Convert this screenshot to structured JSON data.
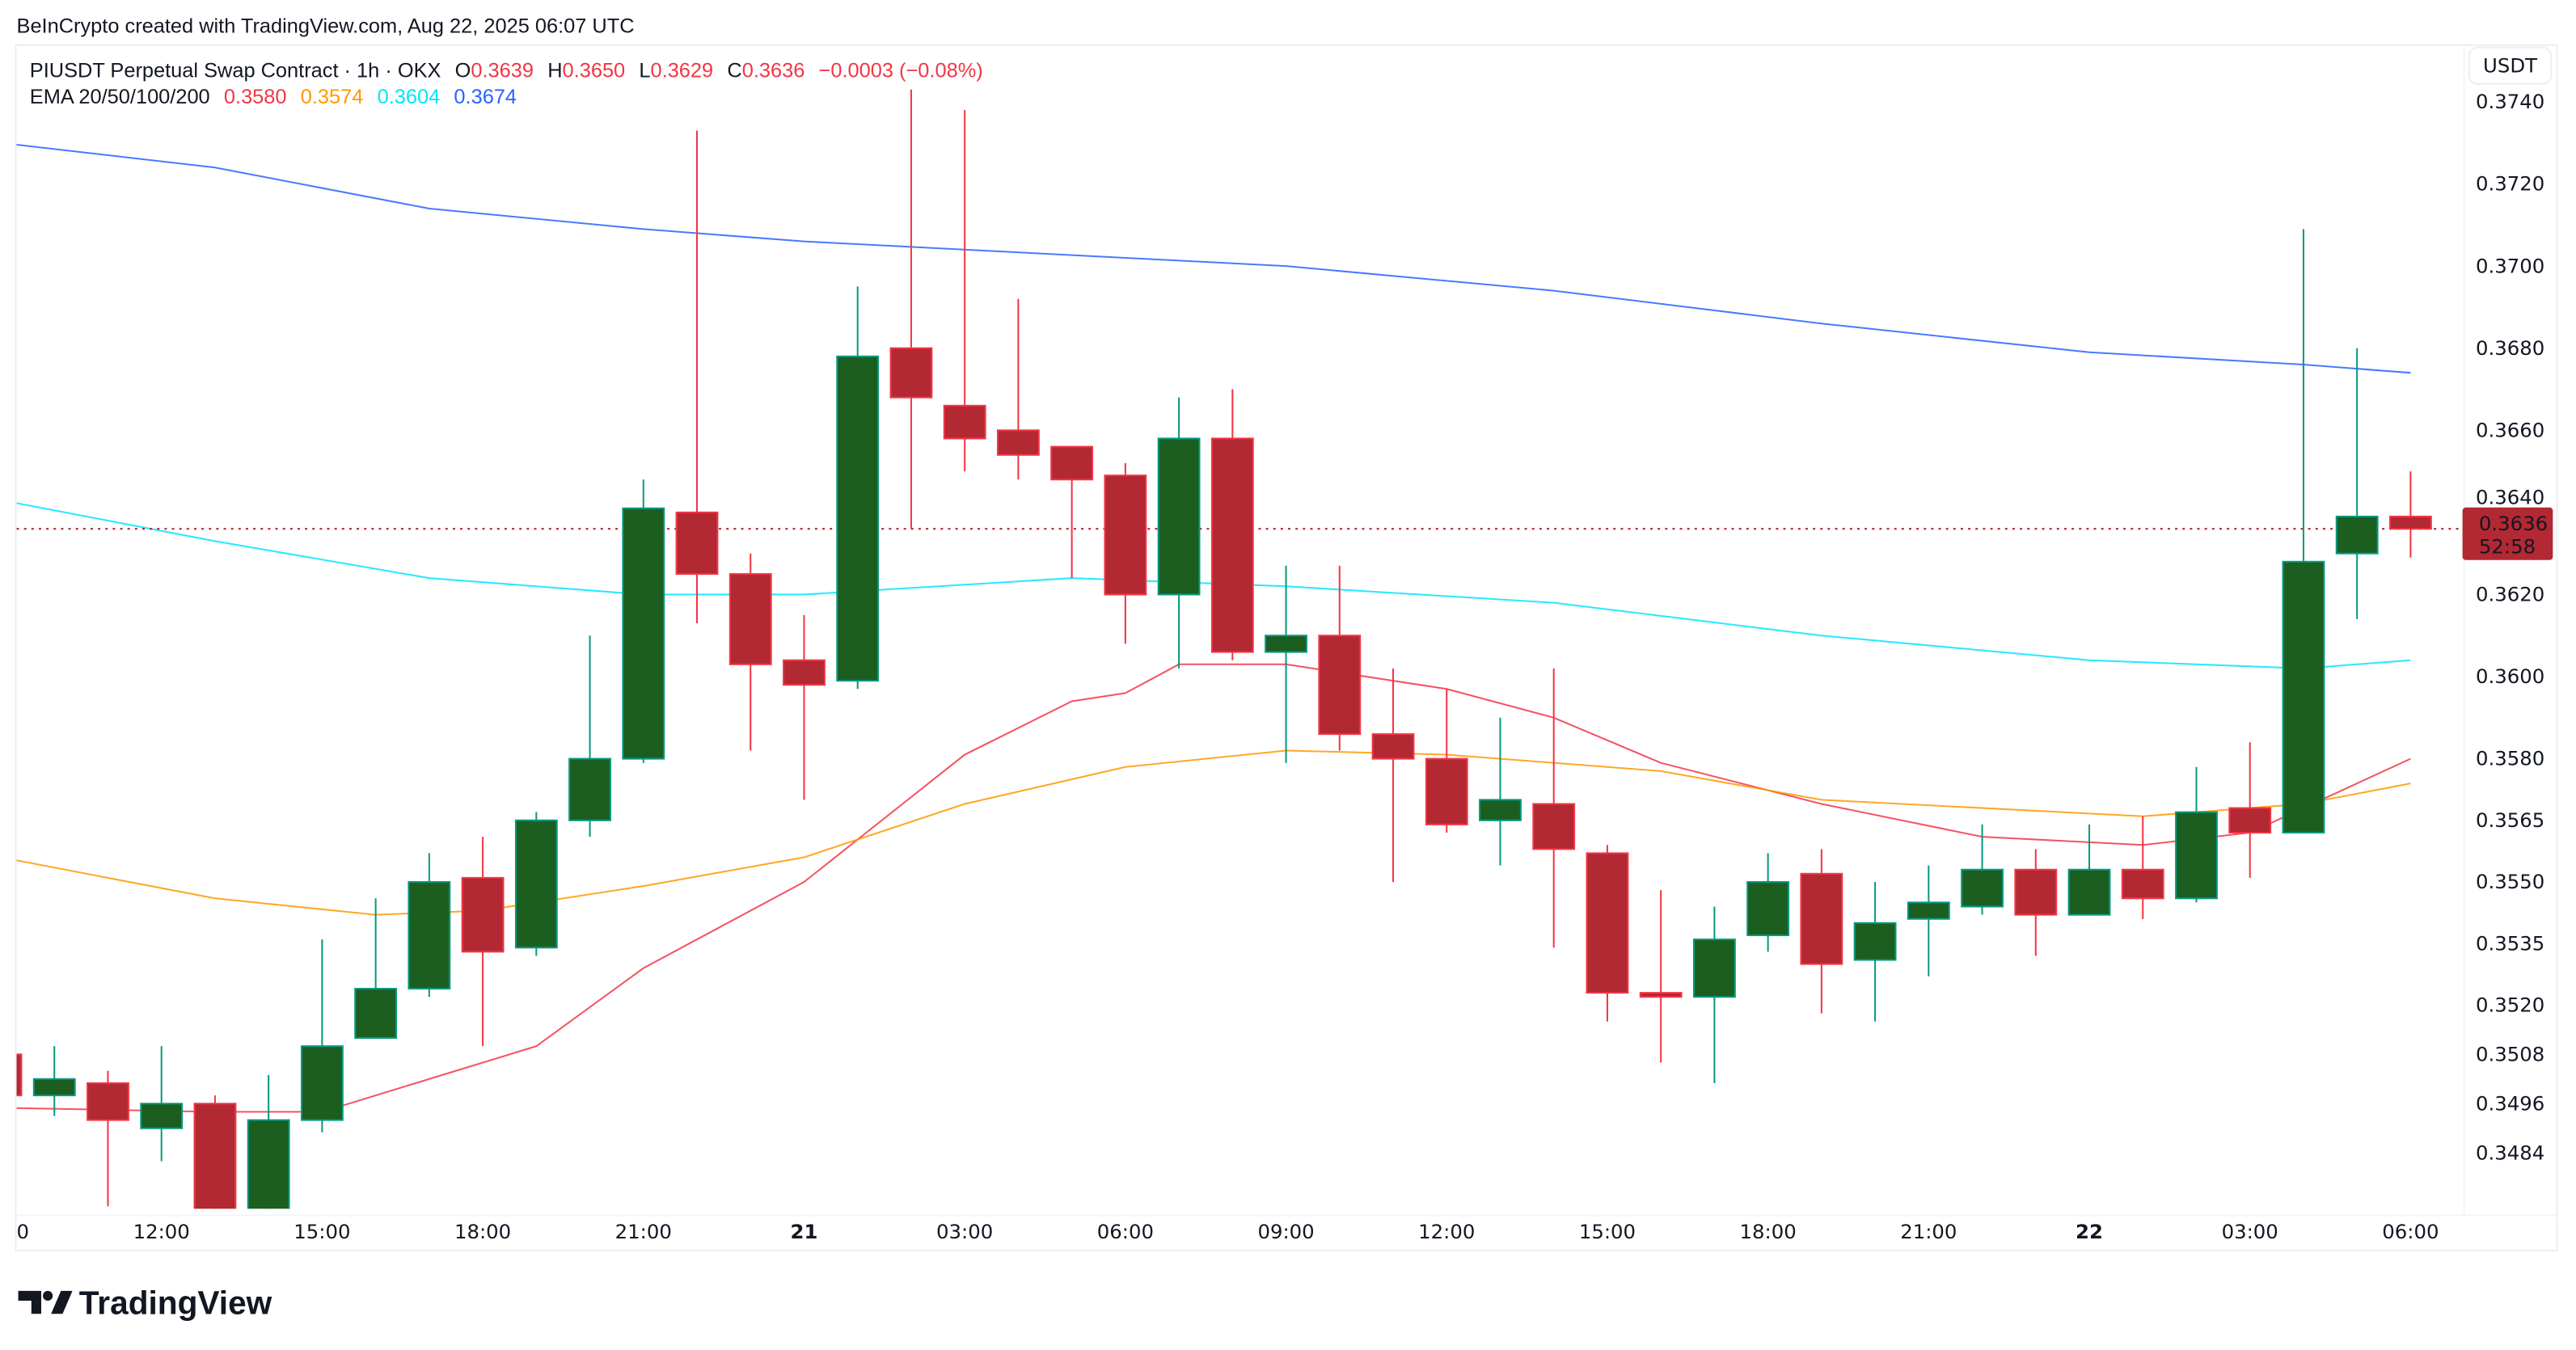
{
  "attribution": "BeInCrypto created with TradingView.com, Aug 22, 2025 06:07 UTC",
  "legend": {
    "symbol": "PIUSDT Perpetual Swap Contract · 1h · OKX",
    "o_label": "O",
    "o": "0.3639",
    "h_label": "H",
    "h": "0.3650",
    "l_label": "L",
    "l": "0.3629",
    "c_label": "C",
    "c": "0.3636",
    "change": "−0.0003 (−0.08%)",
    "ema_label": "EMA 20/50/100/200",
    "ema20": "0.3580",
    "ema50": "0.3574",
    "ema100": "0.3604",
    "ema200": "0.3674"
  },
  "currency_button": "USDT",
  "last_price": {
    "price": "0.3636",
    "countdown": "52:58"
  },
  "logo_text": "TradingView",
  "colors": {
    "up_body": "#1b5e20",
    "up_border": "#089981",
    "down_body": "#b22833",
    "down_border": "#f23645",
    "ema20": "#f23645",
    "ema50": "#ff9800",
    "ema100": "#00e5ff",
    "ema200": "#2962ff"
  },
  "chart_data": {
    "type": "candlestick",
    "interval": "1h",
    "ylim": [
      0.3474,
      0.3742
    ],
    "grid": false,
    "y_ticks": [
      "0.3740",
      "0.3720",
      "0.3700",
      "0.3680",
      "0.3660",
      "0.3640",
      "0.3620",
      "0.3600",
      "0.3580",
      "0.3565",
      "0.3550",
      "0.3535",
      "0.3520",
      "0.3508",
      "0.3496",
      "0.3484"
    ],
    "x_ticks": [
      {
        "i": 0,
        "label": "0",
        "bold": false
      },
      {
        "i": 3,
        "label": "12:00",
        "bold": false
      },
      {
        "i": 6,
        "label": "15:00",
        "bold": false
      },
      {
        "i": 9,
        "label": "18:00",
        "bold": false
      },
      {
        "i": 12,
        "label": "21:00",
        "bold": false
      },
      {
        "i": 15,
        "label": "21",
        "bold": true
      },
      {
        "i": 18,
        "label": "03:00",
        "bold": false
      },
      {
        "i": 21,
        "label": "06:00",
        "bold": false
      },
      {
        "i": 24,
        "label": "09:00",
        "bold": false
      },
      {
        "i": 27,
        "label": "12:00",
        "bold": false
      },
      {
        "i": 30,
        "label": "15:00",
        "bold": false
      },
      {
        "i": 33,
        "label": "18:00",
        "bold": false
      },
      {
        "i": 36,
        "label": "21:00",
        "bold": false
      },
      {
        "i": 39,
        "label": "22",
        "bold": true
      },
      {
        "i": 42,
        "label": "03:00",
        "bold": false
      },
      {
        "i": 45,
        "label": "06:00",
        "bold": false
      }
    ],
    "candles": [
      [
        0.3508,
        0.3508,
        0.3498,
        0.3498
      ],
      [
        0.3498,
        0.351,
        0.3493,
        0.3502
      ],
      [
        0.3501,
        0.3504,
        0.3471,
        0.3492
      ],
      [
        0.349,
        0.351,
        0.3482,
        0.3496
      ],
      [
        0.3496,
        0.3498,
        0.3465,
        0.3468
      ],
      [
        0.3468,
        0.3503,
        0.3465,
        0.3492
      ],
      [
        0.3492,
        0.3536,
        0.3489,
        0.351
      ],
      [
        0.3512,
        0.3546,
        0.3512,
        0.3524
      ],
      [
        0.3524,
        0.3557,
        0.3522,
        0.355
      ],
      [
        0.3551,
        0.3561,
        0.351,
        0.3533
      ],
      [
        0.3534,
        0.3567,
        0.3532,
        0.3565
      ],
      [
        0.3565,
        0.361,
        0.3561,
        0.358
      ],
      [
        0.358,
        0.3648,
        0.3579,
        0.3641
      ],
      [
        0.364,
        0.3733,
        0.3613,
        0.3625
      ],
      [
        0.3625,
        0.363,
        0.3582,
        0.3603
      ],
      [
        0.3604,
        0.3615,
        0.357,
        0.3598
      ],
      [
        0.3599,
        0.3695,
        0.3597,
        0.3678
      ],
      [
        0.368,
        0.3743,
        0.3636,
        0.3668
      ],
      [
        0.3666,
        0.3738,
        0.365,
        0.3658
      ],
      [
        0.366,
        0.3692,
        0.3648,
        0.3654
      ],
      [
        0.3656,
        0.3656,
        0.3624,
        0.3648
      ],
      [
        0.3649,
        0.3652,
        0.3608,
        0.362
      ],
      [
        0.362,
        0.3668,
        0.3602,
        0.3658
      ],
      [
        0.3658,
        0.367,
        0.3604,
        0.3606
      ],
      [
        0.3606,
        0.3627,
        0.3579,
        0.361
      ],
      [
        0.361,
        0.3627,
        0.3582,
        0.3586
      ],
      [
        0.3586,
        0.3602,
        0.355,
        0.358
      ],
      [
        0.358,
        0.3597,
        0.3562,
        0.3564
      ],
      [
        0.3565,
        0.359,
        0.3554,
        0.357
      ],
      [
        0.3569,
        0.3602,
        0.3534,
        0.3558
      ],
      [
        0.3557,
        0.3559,
        0.3516,
        0.3523
      ],
      [
        0.3523,
        0.3548,
        0.3506,
        0.3522
      ],
      [
        0.3522,
        0.3544,
        0.3501,
        0.3536
      ],
      [
        0.3537,
        0.3557,
        0.3533,
        0.355
      ],
      [
        0.3552,
        0.3558,
        0.3518,
        0.353
      ],
      [
        0.3531,
        0.355,
        0.3516,
        0.354
      ],
      [
        0.3541,
        0.3554,
        0.3527,
        0.3545
      ],
      [
        0.3544,
        0.3564,
        0.3542,
        0.3553
      ],
      [
        0.3553,
        0.3558,
        0.3532,
        0.3542
      ],
      [
        0.3542,
        0.3564,
        0.3542,
        0.3553
      ],
      [
        0.3553,
        0.3566,
        0.3541,
        0.3546
      ],
      [
        0.3546,
        0.3578,
        0.3545,
        0.3567
      ],
      [
        0.3568,
        0.3584,
        0.3551,
        0.3562
      ],
      [
        0.3562,
        0.3709,
        0.3562,
        0.3628
      ],
      [
        0.363,
        0.368,
        0.3614,
        0.3639
      ],
      [
        0.3639,
        0.365,
        0.3629,
        0.3636
      ]
    ],
    "ema": [
      {
        "name": "EMA 20",
        "color": "#f23645",
        "points": [
          [
            0,
            0.3495
          ],
          [
            4,
            0.3494
          ],
          [
            6,
            0.3494
          ],
          [
            8,
            0.3502
          ],
          [
            10,
            0.351
          ],
          [
            12,
            0.3529
          ],
          [
            15,
            0.355
          ],
          [
            18,
            0.3581
          ],
          [
            20,
            0.3594
          ],
          [
            21,
            0.3596
          ],
          [
            22,
            0.3603
          ],
          [
            24,
            0.3603
          ],
          [
            27,
            0.3597
          ],
          [
            29,
            0.359
          ],
          [
            31,
            0.3579
          ],
          [
            34,
            0.3569
          ],
          [
            37,
            0.3561
          ],
          [
            40,
            0.3559
          ],
          [
            42,
            0.3562
          ],
          [
            45,
            0.358
          ]
        ]
      },
      {
        "name": "EMA 50",
        "color": "#ff9800",
        "points": [
          [
            0,
            0.3556
          ],
          [
            4,
            0.3546
          ],
          [
            7,
            0.3542
          ],
          [
            9,
            0.3543
          ],
          [
            12,
            0.3549
          ],
          [
            15,
            0.3556
          ],
          [
            18,
            0.3569
          ],
          [
            21,
            0.3578
          ],
          [
            24,
            0.3582
          ],
          [
            27,
            0.3581
          ],
          [
            31,
            0.3577
          ],
          [
            34,
            0.357
          ],
          [
            37,
            0.3568
          ],
          [
            40,
            0.3566
          ],
          [
            43,
            0.3569
          ],
          [
            45,
            0.3574
          ]
        ]
      },
      {
        "name": "EMA 100",
        "color": "#00e5ff",
        "points": [
          [
            0,
            0.3643
          ],
          [
            4,
            0.3633
          ],
          [
            8,
            0.3624
          ],
          [
            12,
            0.362
          ],
          [
            15,
            0.362
          ],
          [
            20,
            0.3624
          ],
          [
            24,
            0.3622
          ],
          [
            29,
            0.3618
          ],
          [
            34,
            0.361
          ],
          [
            39,
            0.3604
          ],
          [
            43,
            0.3602
          ],
          [
            45,
            0.3604
          ]
        ]
      },
      {
        "name": "EMA 200",
        "color": "#2962ff",
        "points": [
          [
            0,
            0.373
          ],
          [
            4,
            0.3724
          ],
          [
            8,
            0.3714
          ],
          [
            12,
            0.3709
          ],
          [
            15,
            0.3706
          ],
          [
            21,
            0.3702
          ],
          [
            24,
            0.37
          ],
          [
            29,
            0.3694
          ],
          [
            34,
            0.3686
          ],
          [
            39,
            0.3679
          ],
          [
            43,
            0.3676
          ],
          [
            45,
            0.3674
          ]
        ]
      }
    ]
  }
}
